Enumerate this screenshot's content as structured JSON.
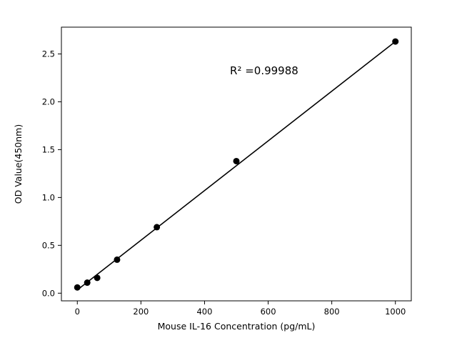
{
  "chart_data": {
    "type": "scatter",
    "title": "",
    "xlabel": "Mouse IL-16 Concentration (pg/mL)",
    "ylabel": "OD Value(450nm)",
    "annotation": "R² =0.99988",
    "x": [
      0,
      31.25,
      62.5,
      125,
      250,
      500,
      1000
    ],
    "y": [
      0.06,
      0.11,
      0.16,
      0.35,
      0.69,
      1.38,
      2.63
    ],
    "fit_line": {
      "slope": 0.002596,
      "intercept": 0.034,
      "x_start": 0,
      "x_end": 1000
    },
    "xlim": [
      -50,
      1050
    ],
    "ylim": [
      -0.08,
      2.78
    ],
    "xticks": [
      0,
      200,
      400,
      600,
      800,
      1000
    ],
    "yticks": [
      0.0,
      0.5,
      1.0,
      1.5,
      2.0,
      2.5
    ],
    "grid": false,
    "legend_position": "none",
    "line_color": "#000000",
    "marker_color": "#000000",
    "background_color": "#ffffff"
  }
}
